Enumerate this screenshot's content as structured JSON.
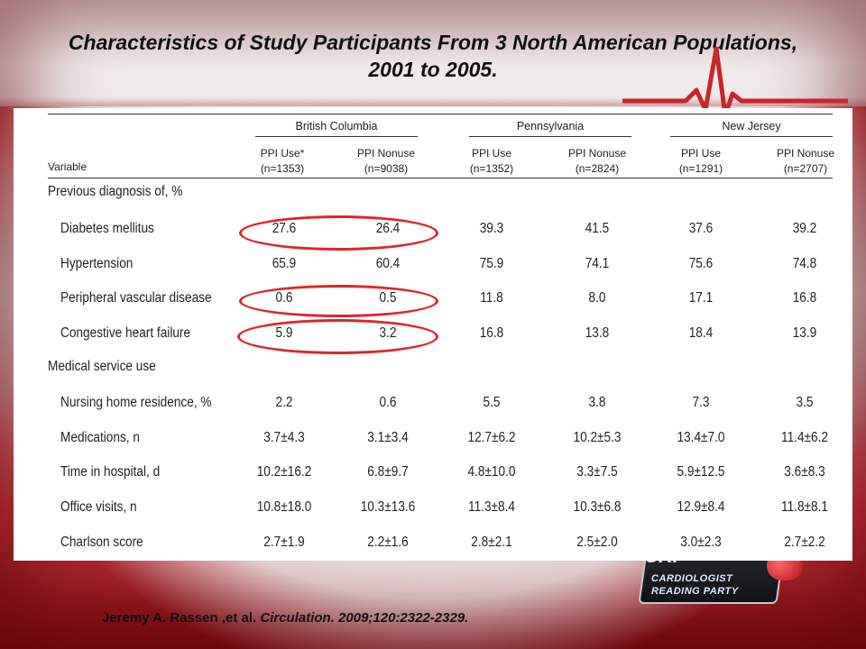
{
  "slide": {
    "title": "Characteristics of Study Participants From 3 North American Populations, 2001 to 2005.",
    "citation_authors": "Jeremy A. Rassen ,et al. ",
    "citation_journal": "Circulation. 2009;120:2322-2329.",
    "logo": {
      "line1": "CARDIOLOGIST",
      "line2": "READING PARTY",
      "mark": "CRP"
    }
  },
  "table": {
    "variable_header": "Variable",
    "groups": [
      "British Columbia",
      "Pennsylvania",
      "New Jersey"
    ],
    "columns": [
      {
        "label": "PPI Use*",
        "n": "(n=1353)"
      },
      {
        "label": "PPI Nonuse",
        "n": "(n=9038)"
      },
      {
        "label": "PPI Use",
        "n": "(n=1352)"
      },
      {
        "label": "PPI Nonuse",
        "n": "(n=2824)"
      },
      {
        "label": "PPI Use",
        "n": "(n=1291)"
      },
      {
        "label": "PPI Nonuse",
        "n": "(n=2707)"
      }
    ],
    "section_1": "Previous diagnosis of, %",
    "section_2": "Medical service use",
    "rows": [
      {
        "label": "Diabetes mellitus",
        "values": [
          "27.6",
          "26.4",
          "39.3",
          "41.5",
          "37.6",
          "39.2"
        ]
      },
      {
        "label": "Hypertension",
        "values": [
          "65.9",
          "60.4",
          "75.9",
          "74.1",
          "75.6",
          "74.8"
        ]
      },
      {
        "label": "Peripheral vascular disease",
        "values": [
          "0.6",
          "0.5",
          "11.8",
          "8.0",
          "17.1",
          "16.8"
        ]
      },
      {
        "label": "Congestive heart failure",
        "values": [
          "5.9",
          "3.2",
          "16.8",
          "13.8",
          "18.4",
          "13.9"
        ]
      },
      {
        "label": "Nursing home residence, %",
        "values": [
          "2.2",
          "0.6",
          "5.5",
          "3.8",
          "7.3",
          "3.5"
        ]
      },
      {
        "label": "Medications, n",
        "values": [
          "3.7±4.3",
          "3.1±3.4",
          "12.7±6.2",
          "10.2±5.3",
          "13.4±7.0",
          "11.4±6.2"
        ]
      },
      {
        "label": "Time in hospital, d",
        "values": [
          "10.2±16.2",
          "6.8±9.7",
          "4.8±10.0",
          "3.3±7.5",
          "5.9±12.5",
          "3.6±8.3"
        ]
      },
      {
        "label": "Office visits, n",
        "values": [
          "10.8±18.0",
          "10.3±13.6",
          "11.3±8.4",
          "10.3±6.8",
          "12.9±8.4",
          "11.8±8.1"
        ]
      },
      {
        "label": "Charlson score",
        "values": [
          "2.7±1.9",
          "2.2±1.6",
          "2.8±2.1",
          "2.5±2.0",
          "3.0±2.3",
          "2.7±2.2"
        ]
      }
    ],
    "highlighted_rows": [
      "Diabetes mellitus",
      "Peripheral vascular disease",
      "Congestive heart failure"
    ],
    "highlight_color": "#e0242a"
  }
}
